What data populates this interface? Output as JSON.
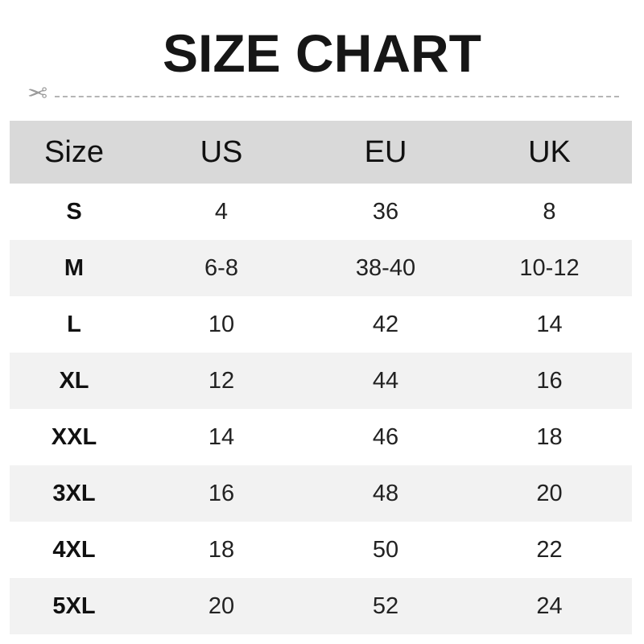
{
  "title": "SIZE CHART",
  "icons": {
    "cut_line": "scissors-icon"
  },
  "table": {
    "headers": [
      "Size",
      "US",
      "EU",
      "UK"
    ],
    "rows": [
      [
        "S",
        "4",
        "36",
        "8"
      ],
      [
        "M",
        "6-8",
        "38-40",
        "10-12"
      ],
      [
        "L",
        "10",
        "42",
        "14"
      ],
      [
        "XL",
        "12",
        "44",
        "16"
      ],
      [
        "XXL",
        "14",
        "46",
        "18"
      ],
      [
        "3XL",
        "16",
        "48",
        "20"
      ],
      [
        "4XL",
        "18",
        "50",
        "22"
      ],
      [
        "5XL",
        "20",
        "52",
        "24"
      ]
    ]
  },
  "colors": {
    "header_bg": "#d9d9d9",
    "alt_row_bg": "#f2f2f2"
  }
}
